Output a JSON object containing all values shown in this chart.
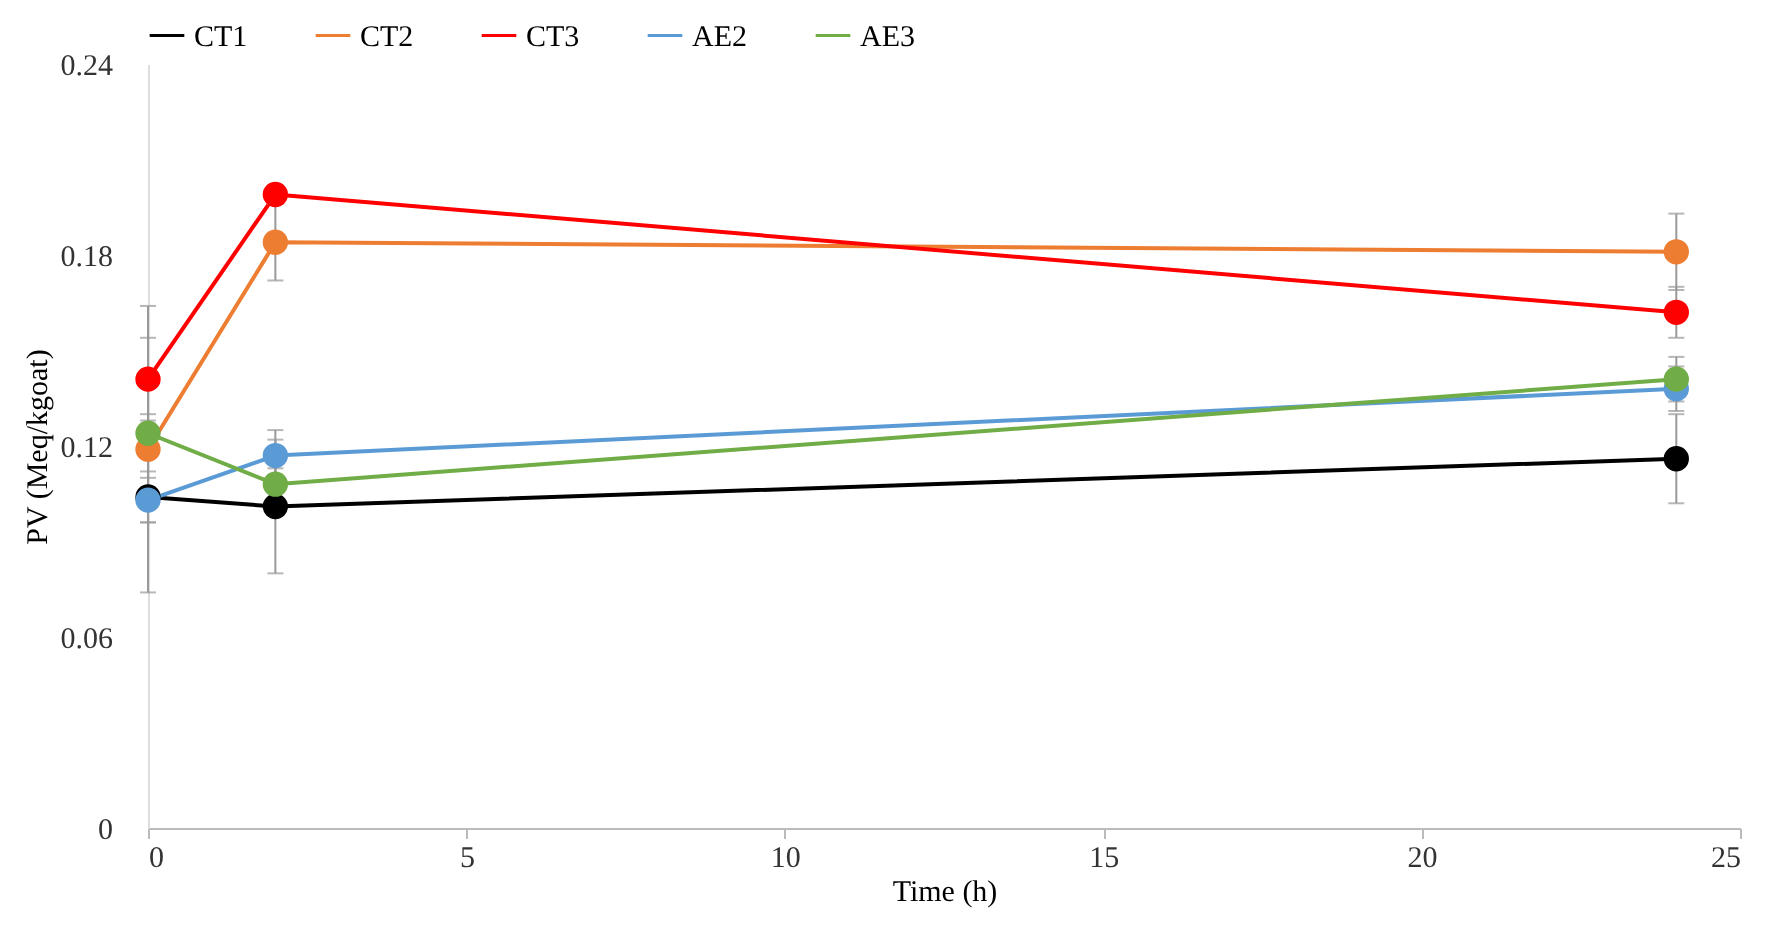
{
  "chart_data": {
    "type": "line",
    "xlabel": "Time (h)",
    "ylabel": "PV (Meq/kgoat)",
    "x": [
      0,
      2,
      24
    ],
    "series": [
      {
        "name": "CT1",
        "color": "#000000",
        "values": [
          0.104,
          0.101,
          0.116
        ],
        "errors": [
          0.008,
          0.021,
          0.014
        ]
      },
      {
        "name": "CT2",
        "color": "#ed7d31",
        "values": [
          0.119,
          0.184,
          0.181
        ],
        "errors": [
          0.045,
          0.012,
          0.012
        ]
      },
      {
        "name": "CT3",
        "color": "#ff0000",
        "values": [
          0.141,
          0.199,
          0.162
        ],
        "errors": [
          0.013,
          0.003,
          0.008
        ]
      },
      {
        "name": "AE2",
        "color": "#5b9bd5",
        "values": [
          0.103,
          0.117,
          0.138
        ],
        "errors": [
          0.007,
          0.008,
          0.007
        ]
      },
      {
        "name": "AE3",
        "color": "#70ad47",
        "values": [
          0.124,
          0.108,
          0.141
        ],
        "errors": [
          0.006,
          0.005,
          0.007
        ]
      }
    ],
    "xlim": [
      0,
      25
    ],
    "xticks": [
      0,
      5,
      10,
      15,
      20,
      25
    ],
    "ylim": [
      0,
      0.24
    ],
    "yticks": [
      0,
      0.06,
      0.12,
      0.18,
      0.24
    ],
    "grid": false,
    "legend": "top",
    "marker": "circle",
    "line_style": "solid"
  }
}
